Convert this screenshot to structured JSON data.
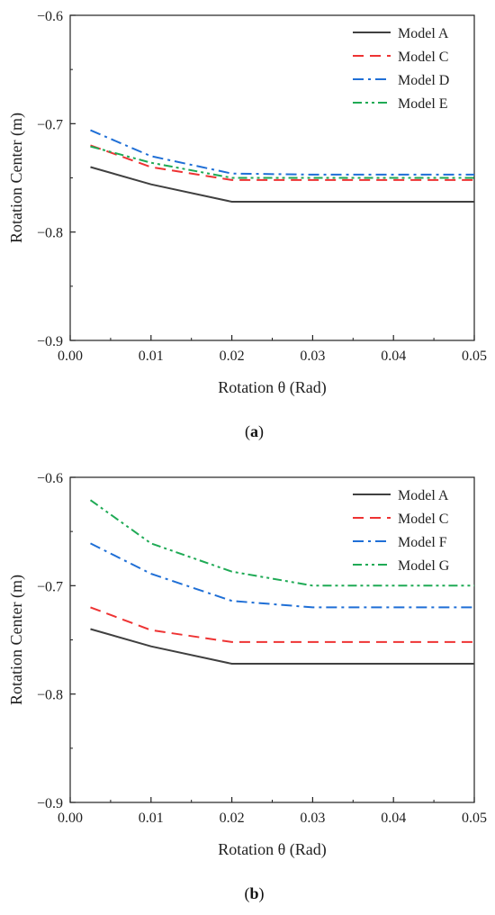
{
  "chart_data": [
    {
      "type": "line",
      "panel_label": "a",
      "title": "",
      "xlabel": "Rotation θ (Rad)",
      "ylabel": "Rotation Center (m)",
      "xlim": [
        0.0,
        0.05
      ],
      "ylim": [
        -0.9,
        -0.6
      ],
      "xticks": [
        "0.00",
        "0.01",
        "0.02",
        "0.03",
        "0.04",
        "0.05"
      ],
      "yticks": [
        "−0.6",
        "−0.7",
        "−0.8",
        "−0.9"
      ],
      "legend_position": "top-right",
      "grid": false,
      "series": [
        {
          "name": "Model A",
          "color": "#404040",
          "dash": "solid",
          "x": [
            0.0025,
            0.01,
            0.02,
            0.03,
            0.04,
            0.05
          ],
          "y": [
            -0.74,
            -0.756,
            -0.772,
            -0.772,
            -0.772,
            -0.772
          ]
        },
        {
          "name": "Model C",
          "color": "#ee3333",
          "dash": "dash",
          "x": [
            0.0025,
            0.01,
            0.02,
            0.03,
            0.04,
            0.05
          ],
          "y": [
            -0.72,
            -0.74,
            -0.752,
            -0.752,
            -0.752,
            -0.752
          ]
        },
        {
          "name": "Model D",
          "color": "#1f6fd6",
          "dash": "dashdot",
          "x": [
            0.0025,
            0.01,
            0.02,
            0.03,
            0.04,
            0.05
          ],
          "y": [
            -0.706,
            -0.73,
            -0.746,
            -0.747,
            -0.747,
            -0.747
          ]
        },
        {
          "name": "Model E",
          "color": "#1faa55",
          "dash": "dashdotdot",
          "x": [
            0.0025,
            0.01,
            0.02,
            0.03,
            0.04,
            0.05
          ],
          "y": [
            -0.721,
            -0.736,
            -0.75,
            -0.75,
            -0.75,
            -0.75
          ]
        }
      ]
    },
    {
      "type": "line",
      "panel_label": "b",
      "title": "",
      "xlabel": "Rotation θ (Rad)",
      "ylabel": "Rotation Center (m)",
      "xlim": [
        0.0,
        0.05
      ],
      "ylim": [
        -0.9,
        -0.6
      ],
      "xticks": [
        "0.00",
        "0.01",
        "0.02",
        "0.03",
        "0.04",
        "0.05"
      ],
      "yticks": [
        "−0.6",
        "−0.7",
        "−0.8",
        "−0.9"
      ],
      "legend_position": "top-right",
      "grid": false,
      "series": [
        {
          "name": "Model A",
          "color": "#404040",
          "dash": "solid",
          "x": [
            0.0025,
            0.01,
            0.02,
            0.03,
            0.04,
            0.05
          ],
          "y": [
            -0.74,
            -0.756,
            -0.772,
            -0.772,
            -0.772,
            -0.772
          ]
        },
        {
          "name": "Model C",
          "color": "#ee3333",
          "dash": "dash",
          "x": [
            0.0025,
            0.01,
            0.02,
            0.03,
            0.04,
            0.05
          ],
          "y": [
            -0.72,
            -0.741,
            -0.752,
            -0.752,
            -0.752,
            -0.752
          ]
        },
        {
          "name": "Model F",
          "color": "#1f6fd6",
          "dash": "dashdot",
          "x": [
            0.0025,
            0.01,
            0.02,
            0.03,
            0.04,
            0.05
          ],
          "y": [
            -0.661,
            -0.689,
            -0.714,
            -0.72,
            -0.72,
            -0.72
          ]
        },
        {
          "name": "Model G",
          "color": "#1faa55",
          "dash": "dashdotdot",
          "x": [
            0.0025,
            0.01,
            0.02,
            0.03,
            0.04,
            0.05
          ],
          "y": [
            -0.621,
            -0.661,
            -0.687,
            -0.7,
            -0.7,
            -0.7
          ]
        }
      ]
    }
  ]
}
